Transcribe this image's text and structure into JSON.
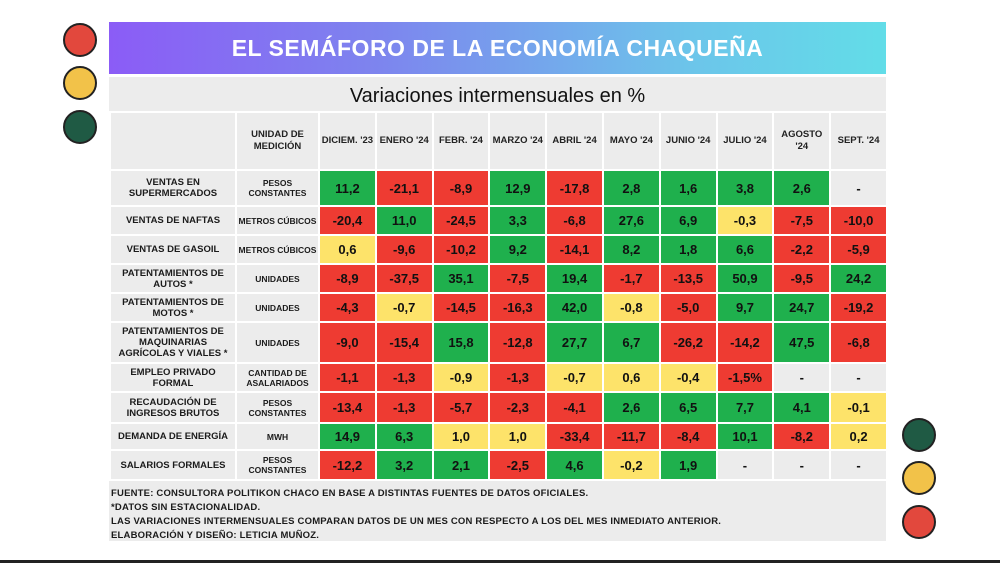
{
  "title": "EL SEMÁFORO DE LA ECONOMÍA CHAQUEÑA",
  "subtitle": "Variaciones intermensuales en %",
  "header": {
    "unit": "UNIDAD DE MEDICIÓN",
    "months": [
      "DICIEM. '23",
      "ENERO '24",
      "FEBR. '24",
      "MARZO '24",
      "ABRIL '24",
      "MAYO '24",
      "JUNIO '24",
      "JULIO '24",
      "AGOSTO '24",
      "SEPT. '24"
    ]
  },
  "rows": [
    {
      "label": "VENTAS EN SUPERMERCADOS",
      "unit": "PESOS CONSTANTES",
      "values": [
        "11,2",
        "-21,1",
        "-8,9",
        "12,9",
        "-17,8",
        "2,8",
        "1,6",
        "3,8",
        "2,6",
        "-"
      ],
      "colors": [
        "green",
        "red",
        "red",
        "green",
        "red",
        "green",
        "green",
        "green",
        "green",
        "none"
      ]
    },
    {
      "label": "VENTAS DE NAFTAS",
      "unit": "METROS CÚBICOS",
      "values": [
        "-20,4",
        "11,0",
        "-24,5",
        "3,3",
        "-6,8",
        "27,6",
        "6,9",
        "-0,3",
        "-7,5",
        "-10,0"
      ],
      "colors": [
        "red",
        "green",
        "red",
        "green",
        "red",
        "green",
        "green",
        "yellow",
        "red",
        "red"
      ]
    },
    {
      "label": "VENTAS DE GASOIL",
      "unit": "METROS CÚBICOS",
      "values": [
        "0,6",
        "-9,6",
        "-10,2",
        "9,2",
        "-14,1",
        "8,2",
        "1,8",
        "6,6",
        "-2,2",
        "-5,9"
      ],
      "colors": [
        "yellow",
        "red",
        "red",
        "green",
        "red",
        "green",
        "green",
        "green",
        "red",
        "red"
      ]
    },
    {
      "label": "PATENTAMIENTOS DE AUTOS *",
      "unit": "UNIDADES",
      "values": [
        "-8,9",
        "-37,5",
        "35,1",
        "-7,5",
        "19,4",
        "-1,7",
        "-13,5",
        "50,9",
        "-9,5",
        "24,2"
      ],
      "colors": [
        "red",
        "red",
        "green",
        "red",
        "green",
        "red",
        "red",
        "green",
        "red",
        "green"
      ]
    },
    {
      "label": "PATENTAMIENTOS DE MOTOS *",
      "unit": "UNIDADES",
      "values": [
        "-4,3",
        "-0,7",
        "-14,5",
        "-16,3",
        "42,0",
        "-0,8",
        "-5,0",
        "9,7",
        "24,7",
        "-19,2"
      ],
      "colors": [
        "red",
        "yellow",
        "red",
        "red",
        "green",
        "yellow",
        "red",
        "green",
        "green",
        "red"
      ]
    },
    {
      "label": "PATENTAMIENTOS DE MAQUINARIAS AGRÍCOLAS Y VIALES *",
      "unit": "UNIDADES",
      "values": [
        "-9,0",
        "-15,4",
        "15,8",
        "-12,8",
        "27,7",
        "6,7",
        "-26,2",
        "-14,2",
        "47,5",
        "-6,8"
      ],
      "colors": [
        "red",
        "red",
        "green",
        "red",
        "green",
        "green",
        "red",
        "red",
        "green",
        "red"
      ]
    },
    {
      "label": "EMPLEO PRIVADO FORMAL",
      "unit": "CANTIDAD DE ASALARIADOS",
      "values": [
        "-1,1",
        "-1,3",
        "-0,9",
        "-1,3",
        "-0,7",
        "0,6",
        "-0,4",
        "-1,5%",
        "-",
        "-"
      ],
      "colors": [
        "red",
        "red",
        "yellow",
        "red",
        "yellow",
        "yellow",
        "yellow",
        "red",
        "none",
        "none"
      ]
    },
    {
      "label": "RECAUDACIÓN DE INGRESOS BRUTOS",
      "unit": "PESOS CONSTANTES",
      "values": [
        "-13,4",
        "-1,3",
        "-5,7",
        "-2,3",
        "-4,1",
        "2,6",
        "6,5",
        "7,7",
        "4,1",
        "-0,1"
      ],
      "colors": [
        "red",
        "red",
        "red",
        "red",
        "red",
        "green",
        "green",
        "green",
        "green",
        "yellow"
      ]
    },
    {
      "label": "DEMANDA DE ENERGÍA",
      "unit": "MWH",
      "values": [
        "14,9",
        "6,3",
        "1,0",
        "1,0",
        "-33,4",
        "-11,7",
        "-8,4",
        "10,1",
        "-8,2",
        "0,2"
      ],
      "colors": [
        "green",
        "green",
        "yellow",
        "yellow",
        "red",
        "red",
        "red",
        "green",
        "red",
        "yellow"
      ]
    },
    {
      "label": "SALARIOS FORMALES",
      "unit": "PESOS CONSTANTES",
      "values": [
        "-12,2",
        "3,2",
        "2,1",
        "-2,5",
        "4,6",
        "-0,2",
        "1,9",
        "-",
        "-",
        "-"
      ],
      "colors": [
        "red",
        "green",
        "green",
        "red",
        "green",
        "yellow",
        "green",
        "none",
        "none",
        "none"
      ]
    }
  ],
  "footer": [
    "FUENTE: CONSULTORA POLITIKON CHACO EN BASE A DISTINTAS FUENTES DE DATOS OFICIALES.",
    "*DATOS SIN ESTACIONALIDAD.",
    "LAS VARIACIONES INTERMENSUALES COMPARAN DATOS DE UN MES CON RESPECTO A LOS DEL MES INMEDIATO ANTERIOR.",
    "ELABORACIÓN Y DISEÑO: LETICIA MUÑOZ."
  ],
  "colors": {
    "green": "#1fb04d",
    "red": "#ee3b32",
    "yellow": "#fde36a"
  }
}
